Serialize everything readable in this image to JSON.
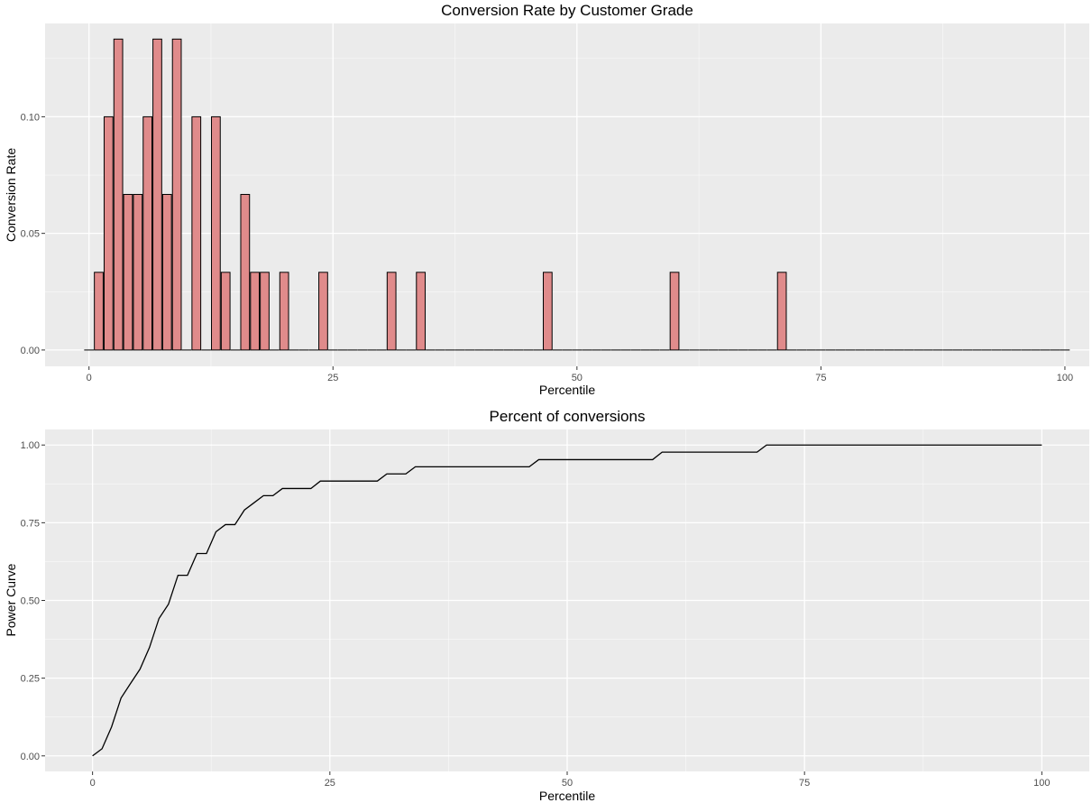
{
  "colors": {
    "panel_background": "#ebebeb",
    "grid_major": "#ffffff",
    "bar_fill": "#e08b8b",
    "bar_outline": "#000000",
    "line": "#000000",
    "tick_text": "#4d4d4d"
  },
  "chart_data": [
    {
      "type": "bar",
      "title": "Conversion Rate by Customer Grade",
      "xlabel": "Percentile",
      "ylabel": "Conversion Rate",
      "xlim": [
        -4.5,
        102.5
      ],
      "ylim": [
        -0.007,
        0.14
      ],
      "grid": true,
      "legend": "none",
      "x_ticks": [
        0,
        25,
        50,
        75,
        100
      ],
      "x_tick_labels": [
        "0",
        "25",
        "50",
        "75",
        "100"
      ],
      "y_ticks": [
        0,
        0.05,
        0.1
      ],
      "y_tick_labels": [
        "0.00",
        "0.05",
        "0.10"
      ],
      "x": [
        0,
        1,
        2,
        3,
        4,
        5,
        6,
        7,
        8,
        9,
        10,
        11,
        12,
        13,
        14,
        15,
        16,
        17,
        18,
        19,
        20,
        21,
        22,
        23,
        24,
        25,
        26,
        27,
        28,
        29,
        30,
        31,
        32,
        33,
        34,
        35,
        36,
        37,
        38,
        39,
        40,
        41,
        42,
        43,
        44,
        45,
        46,
        47,
        48,
        49,
        50,
        51,
        52,
        53,
        54,
        55,
        56,
        57,
        58,
        59,
        60,
        61,
        62,
        63,
        64,
        65,
        66,
        67,
        68,
        69,
        70,
        71,
        72,
        73,
        74,
        75,
        76,
        77,
        78,
        79,
        80,
        81,
        82,
        83,
        84,
        85,
        86,
        87,
        88,
        89,
        90,
        91,
        92,
        93,
        94,
        95,
        96,
        97,
        98,
        99,
        100
      ],
      "values": [
        0,
        0.0333,
        0.1,
        0.1333,
        0.0667,
        0.0667,
        0.1,
        0.1333,
        0.0667,
        0.1333,
        0,
        0.1,
        0,
        0.1,
        0.0333,
        0,
        0.0667,
        0.0333,
        0.0333,
        0,
        0.0333,
        0,
        0,
        0,
        0.0333,
        0,
        0,
        0,
        0,
        0,
        0,
        0.0333,
        0,
        0,
        0.0333,
        0,
        0,
        0,
        0,
        0,
        0,
        0,
        0,
        0,
        0,
        0,
        0,
        0.0333,
        0,
        0,
        0,
        0,
        0,
        0,
        0,
        0,
        0,
        0,
        0,
        0,
        0.0333,
        0,
        0,
        0,
        0,
        0,
        0,
        0,
        0,
        0,
        0,
        0.0333,
        0,
        0,
        0,
        0,
        0,
        0,
        0,
        0,
        0,
        0,
        0,
        0,
        0,
        0,
        0,
        0,
        0,
        0,
        0,
        0,
        0,
        0,
        0,
        0,
        0,
        0,
        0,
        0,
        0
      ]
    },
    {
      "type": "line",
      "title": "Percent of conversions",
      "xlabel": "Percentile",
      "ylabel": "Power Curve",
      "xlim": [
        -5,
        105
      ],
      "ylim": [
        -0.05,
        1.05
      ],
      "grid": true,
      "legend": "none",
      "x_ticks": [
        0,
        25,
        50,
        75,
        100
      ],
      "x_tick_labels": [
        "0",
        "25",
        "50",
        "75",
        "100"
      ],
      "y_ticks": [
        0,
        0.25,
        0.5,
        0.75,
        1
      ],
      "y_tick_labels": [
        "0.00",
        "0.25",
        "0.50",
        "0.75",
        "1.00"
      ],
      "x": [
        0,
        1,
        2,
        3,
        4,
        5,
        6,
        7,
        8,
        9,
        10,
        11,
        12,
        13,
        14,
        15,
        16,
        17,
        18,
        19,
        20,
        21,
        22,
        23,
        24,
        25,
        26,
        27,
        28,
        29,
        30,
        31,
        32,
        33,
        34,
        35,
        36,
        37,
        38,
        39,
        40,
        41,
        42,
        43,
        44,
        45,
        46,
        47,
        48,
        49,
        50,
        51,
        52,
        53,
        54,
        55,
        56,
        57,
        58,
        59,
        60,
        61,
        62,
        63,
        64,
        65,
        66,
        67,
        68,
        69,
        70,
        71,
        72,
        73,
        74,
        75,
        76,
        77,
        78,
        79,
        80,
        81,
        82,
        83,
        84,
        85,
        86,
        87,
        88,
        89,
        90,
        91,
        92,
        93,
        94,
        95,
        96,
        97,
        98,
        99,
        100
      ],
      "values": [
        0,
        0.023,
        0.093,
        0.186,
        0.233,
        0.279,
        0.349,
        0.442,
        0.488,
        0.581,
        0.581,
        0.651,
        0.651,
        0.721,
        0.744,
        0.744,
        0.791,
        0.814,
        0.837,
        0.837,
        0.86,
        0.86,
        0.86,
        0.86,
        0.884,
        0.884,
        0.884,
        0.884,
        0.884,
        0.884,
        0.884,
        0.907,
        0.907,
        0.907,
        0.93,
        0.93,
        0.93,
        0.93,
        0.93,
        0.93,
        0.93,
        0.93,
        0.93,
        0.93,
        0.93,
        0.93,
        0.93,
        0.953,
        0.953,
        0.953,
        0.953,
        0.953,
        0.953,
        0.953,
        0.953,
        0.953,
        0.953,
        0.953,
        0.953,
        0.953,
        0.977,
        0.977,
        0.977,
        0.977,
        0.977,
        0.977,
        0.977,
        0.977,
        0.977,
        0.977,
        0.977,
        1,
        1,
        1,
        1,
        1,
        1,
        1,
        1,
        1,
        1,
        1,
        1,
        1,
        1,
        1,
        1,
        1,
        1,
        1,
        1,
        1,
        1,
        1,
        1,
        1,
        1,
        1,
        1,
        1,
        1
      ]
    }
  ]
}
